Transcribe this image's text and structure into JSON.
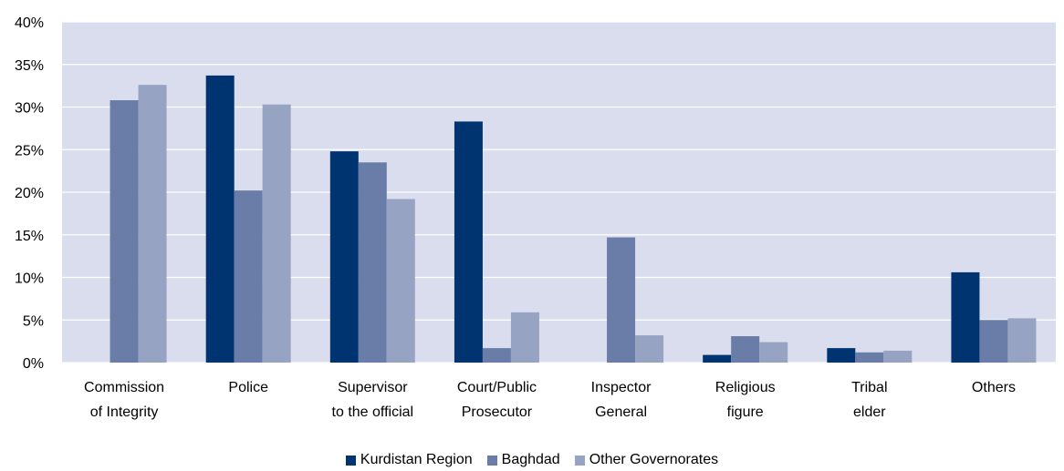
{
  "chart_data": {
    "type": "bar",
    "categories": [
      [
        "Commission",
        "of Integrity"
      ],
      [
        "Police"
      ],
      [
        "Supervisor",
        "to the official"
      ],
      [
        "Court/Public",
        "Prosecutor"
      ],
      [
        "Inspector",
        "General"
      ],
      [
        "Religious",
        "figure"
      ],
      [
        "Tribal",
        "elder"
      ],
      [
        "Others"
      ]
    ],
    "series": [
      {
        "name": "Kurdistan Region",
        "color": "#003471",
        "values": [
          0,
          33.7,
          24.8,
          28.3,
          0,
          0.9,
          1.7,
          10.6
        ]
      },
      {
        "name": "Baghdad",
        "color": "#6a7da8",
        "values": [
          30.8,
          20.2,
          23.5,
          1.7,
          14.7,
          3.1,
          1.2,
          5.0
        ]
      },
      {
        "name": "Other Governorates",
        "color": "#97a3c2",
        "values": [
          32.6,
          30.3,
          19.2,
          5.9,
          3.2,
          2.4,
          1.4,
          5.2
        ]
      }
    ],
    "ylim": [
      0,
      40
    ],
    "yticks": [
      0,
      5,
      10,
      15,
      20,
      25,
      30,
      35,
      40
    ],
    "ytick_labels": [
      "0%",
      "5%",
      "10%",
      "15%",
      "20%",
      "25%",
      "30%",
      "35%",
      "40%"
    ],
    "grid": true,
    "plot_background": "#d9ddee",
    "legend_position": "bottom-center"
  }
}
